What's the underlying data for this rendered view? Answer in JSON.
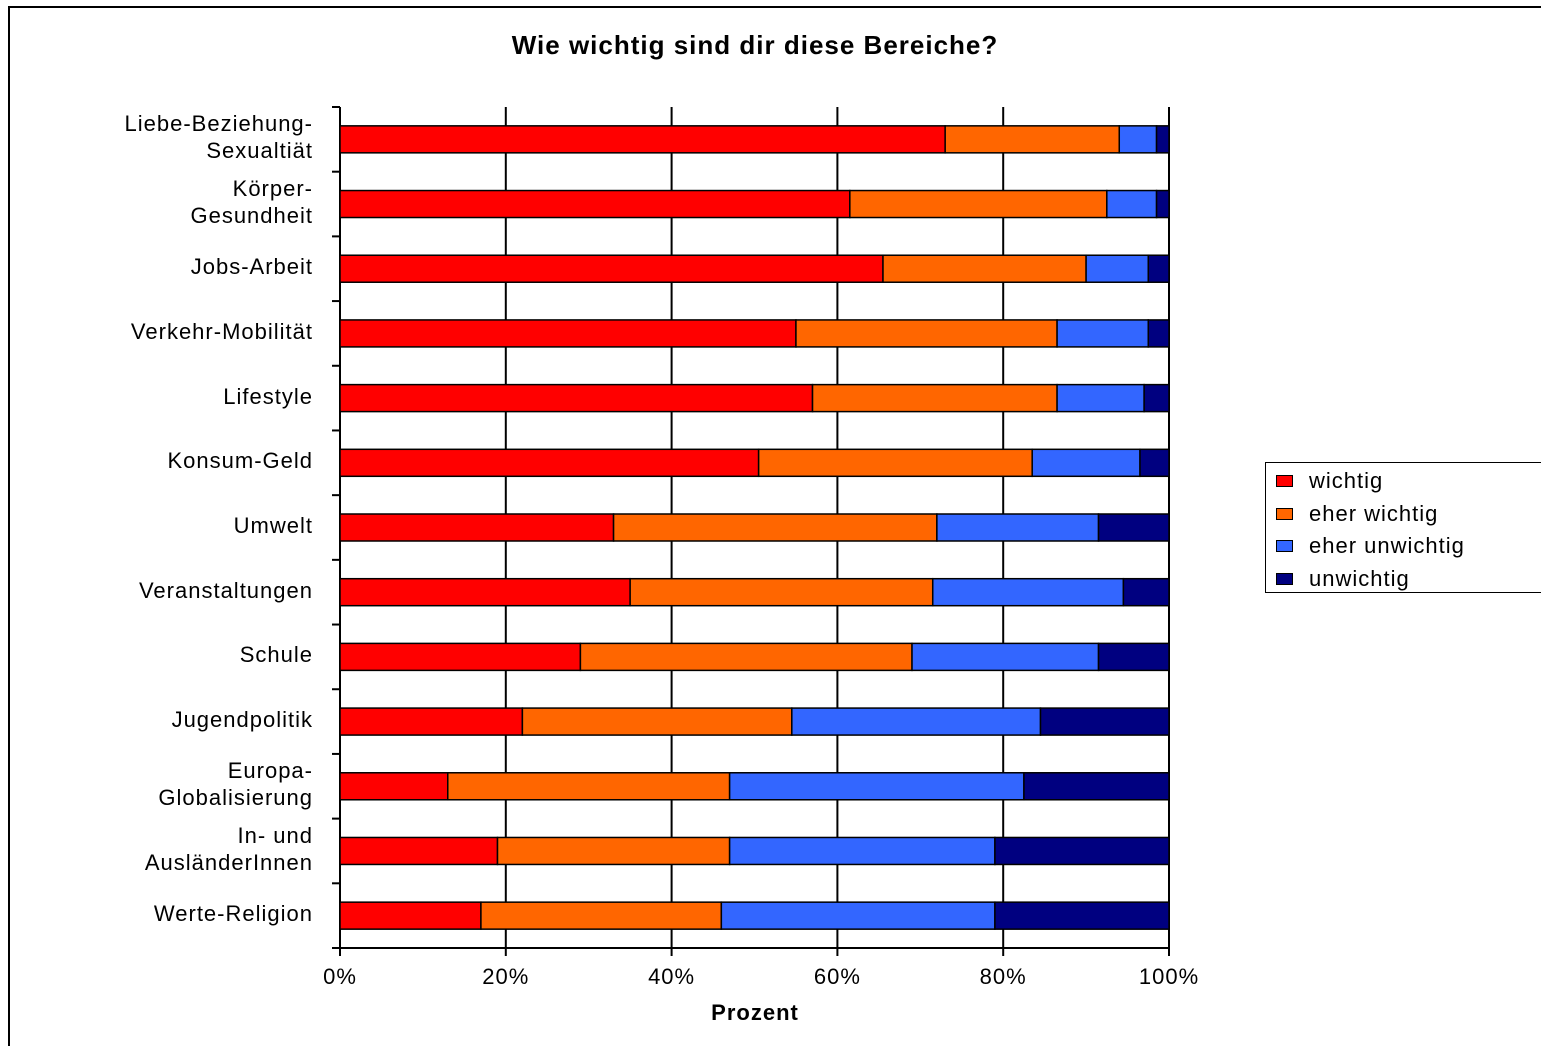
{
  "chart_data": {
    "type": "bar",
    "orientation": "horizontal",
    "stacked": "percent",
    "title": "Wie wichtig sind dir diese Bereiche?",
    "xlabel": "Prozent",
    "ylabel": "",
    "xlim": [
      0,
      100
    ],
    "x_ticks": [
      "0%",
      "20%",
      "40%",
      "60%",
      "80%",
      "100%"
    ],
    "grid": "vertical",
    "legend_position": "right",
    "categories": [
      [
        "Liebe-Beziehung-",
        "Sexualtiät"
      ],
      [
        "Körper-",
        "Gesundheit"
      ],
      [
        "Jobs-Arbeit"
      ],
      [
        "Verkehr-Mobilität"
      ],
      [
        "Lifestyle"
      ],
      [
        "Konsum-Geld"
      ],
      [
        "Umwelt"
      ],
      [
        "Veranstaltungen"
      ],
      [
        "Schule"
      ],
      [
        "Jugendpolitik"
      ],
      [
        "Europa-",
        "Globalisierung"
      ],
      [
        "In- und",
        "AusländerInnen"
      ],
      [
        "Werte-Religion"
      ]
    ],
    "series": [
      {
        "name": "wichtig",
        "color": "#ff0000",
        "values": [
          73,
          61.5,
          65.5,
          55,
          57,
          50.5,
          33,
          35,
          29,
          22,
          13,
          19,
          17
        ]
      },
      {
        "name": "eher wichtig",
        "color": "#ff6600",
        "values": [
          21,
          31,
          24.5,
          31.5,
          29.5,
          33,
          39,
          36.5,
          40,
          32.5,
          34,
          28,
          29
        ]
      },
      {
        "name": "eher unwichtig",
        "color": "#3366ff",
        "values": [
          4.5,
          6,
          7.5,
          11,
          10.5,
          13,
          19.5,
          23,
          22.5,
          30,
          35.5,
          32,
          33
        ]
      },
      {
        "name": "unwichtig",
        "color": "#000080",
        "values": [
          1.5,
          1.5,
          2.5,
          2.5,
          3,
          3.5,
          8.5,
          5.5,
          8.5,
          15.5,
          17.5,
          21,
          21
        ]
      }
    ]
  }
}
